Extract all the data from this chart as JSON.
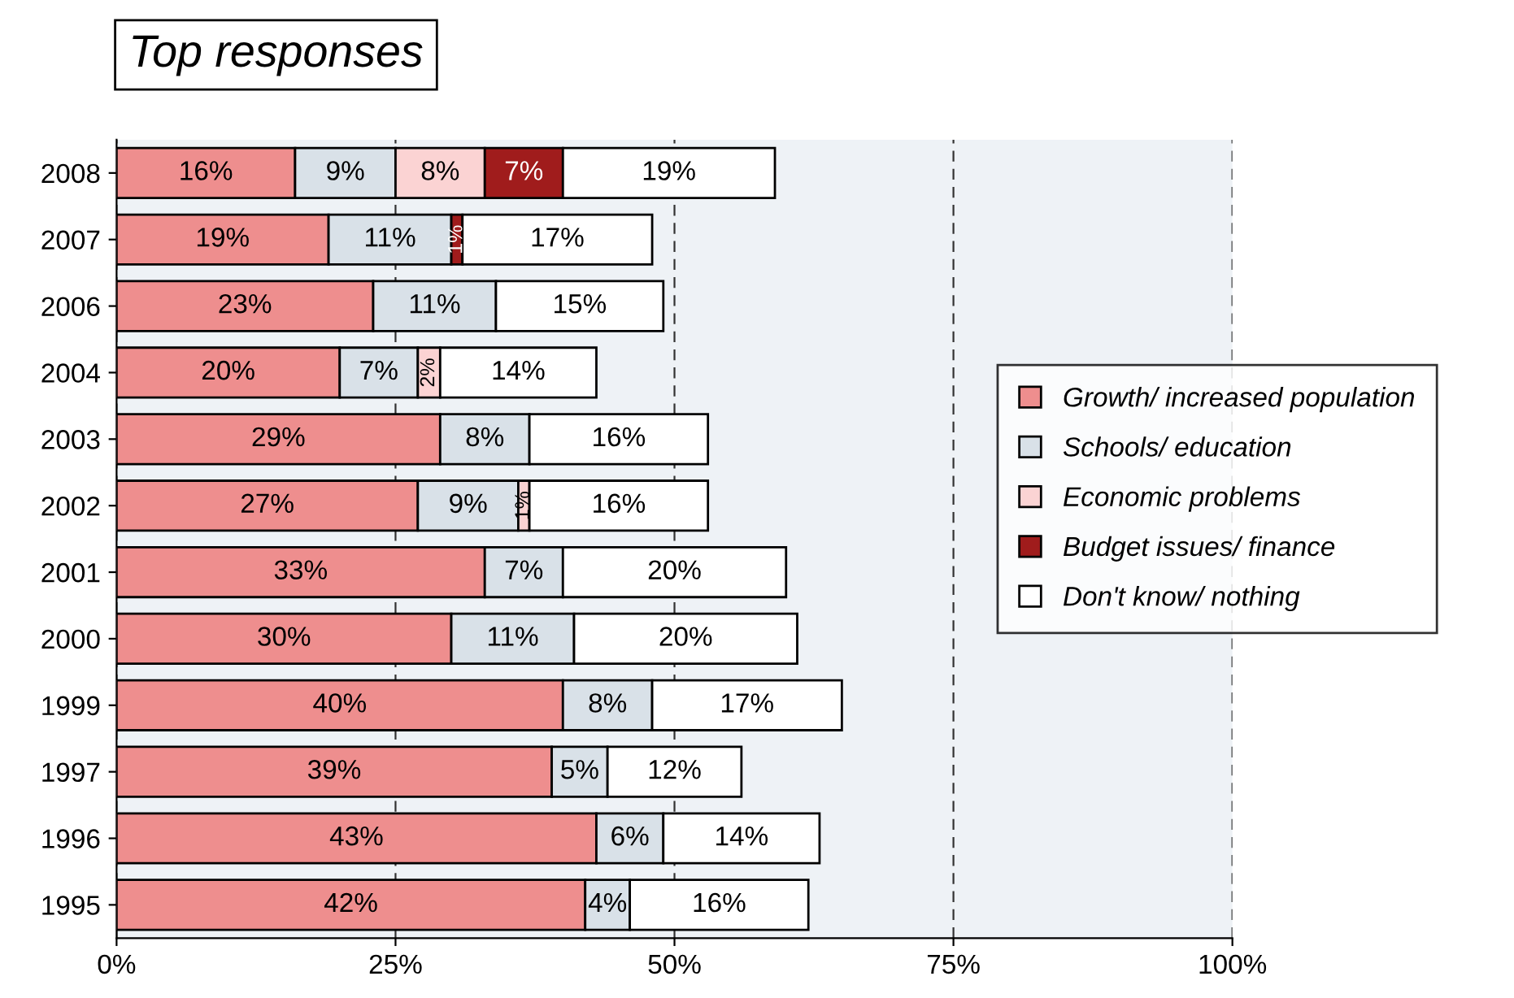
{
  "chart_data": {
    "type": "bar",
    "orientation": "horizontal",
    "stacked": true,
    "title": "Top responses",
    "categories": [
      "2008",
      "2007",
      "2006",
      "2004",
      "2003",
      "2002",
      "2001",
      "2000",
      "1999",
      "1997",
      "1996",
      "1995"
    ],
    "series": [
      {
        "name": "Growth/ increased population",
        "color": "#ee8e8e",
        "values": [
          16,
          19,
          23,
          20,
          29,
          27,
          33,
          30,
          40,
          39,
          43,
          42
        ],
        "value_labels": [
          "16%",
          "19%",
          "23%",
          "20%",
          "29%",
          "27%",
          "33%",
          "30%",
          "40%",
          "39%",
          "43%",
          "42%"
        ]
      },
      {
        "name": "Schools/ education",
        "color": "#d9e1e8",
        "values": [
          9,
          11,
          11,
          7,
          8,
          9,
          7,
          11,
          8,
          5,
          6,
          4
        ],
        "value_labels": [
          "9%",
          "11%",
          "11%",
          "7%",
          "8%",
          "9%",
          "7%",
          "11%",
          "8%",
          "5%",
          "6%",
          "4%"
        ]
      },
      {
        "name": "Economic problems",
        "color": "#fbd3d3",
        "values": [
          8,
          null,
          null,
          2,
          null,
          1,
          null,
          null,
          null,
          null,
          null,
          null
        ],
        "value_labels": [
          "8%",
          null,
          null,
          "2%",
          null,
          "1%",
          null,
          null,
          null,
          null,
          null,
          null
        ]
      },
      {
        "name": "Budget issues/ finance",
        "color": "#a01c1c",
        "values": [
          7,
          1,
          null,
          null,
          null,
          null,
          null,
          null,
          null,
          null,
          null,
          null
        ],
        "value_labels": [
          "7%",
          "1%",
          null,
          null,
          null,
          null,
          null,
          null,
          null,
          null,
          null,
          null
        ]
      },
      {
        "name": "Don't know/ nothing",
        "color": "#ffffff",
        "values": [
          19,
          17,
          15,
          14,
          16,
          16,
          20,
          20,
          17,
          12,
          14,
          16
        ],
        "value_labels": [
          "19%",
          "17%",
          "15%",
          "14%",
          "16%",
          "16%",
          "20%",
          "20%",
          "17%",
          "12%",
          "14%",
          "16%"
        ]
      }
    ],
    "xlim": [
      0,
      100
    ],
    "xticks": [
      {
        "value": 0,
        "label": "0%"
      },
      {
        "value": 25,
        "label": "25%"
      },
      {
        "value": 50,
        "label": "50%"
      },
      {
        "value": 75,
        "label": "75%"
      },
      {
        "value": 100,
        "label": "100%"
      }
    ],
    "grid": "x",
    "legend": "right"
  }
}
